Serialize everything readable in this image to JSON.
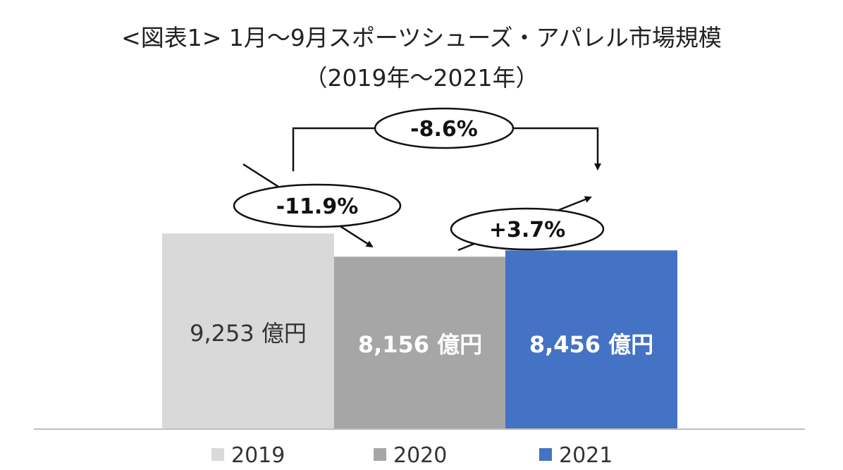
{
  "chart_data": {
    "type": "bar",
    "title": "<図表1> 1月～9月スポーツシューズ・アパレル市場規模",
    "subtitle": "（2019年～2021年）",
    "categories": [
      "2019",
      "2020",
      "2021"
    ],
    "values": [
      9253,
      8156,
      8456
    ],
    "unit": "億円",
    "data_labels": [
      "9,253 億円",
      "8,156 億円",
      "8,456 億円"
    ],
    "colors": [
      "#d9d9d9",
      "#a6a6a6",
      "#4472c4"
    ],
    "label_colors": [
      "#333333",
      "#ffffff",
      "#ffffff"
    ],
    "label_bold": [
      false,
      true,
      true
    ],
    "legend": {
      "position": "bottom",
      "items": [
        {
          "label": "2019",
          "color": "#d9d9d9"
        },
        {
          "label": "2020",
          "color": "#a6a6a6"
        },
        {
          "label": "2021",
          "color": "#4472c4"
        }
      ]
    },
    "annotations": [
      {
        "from": "2019",
        "to": "2020",
        "label": "-11.9%"
      },
      {
        "from": "2020",
        "to": "2021",
        "label": "+3.7%"
      },
      {
        "from": "2019",
        "to": "2021",
        "label": "-8.6%"
      }
    ],
    "grid": false
  }
}
